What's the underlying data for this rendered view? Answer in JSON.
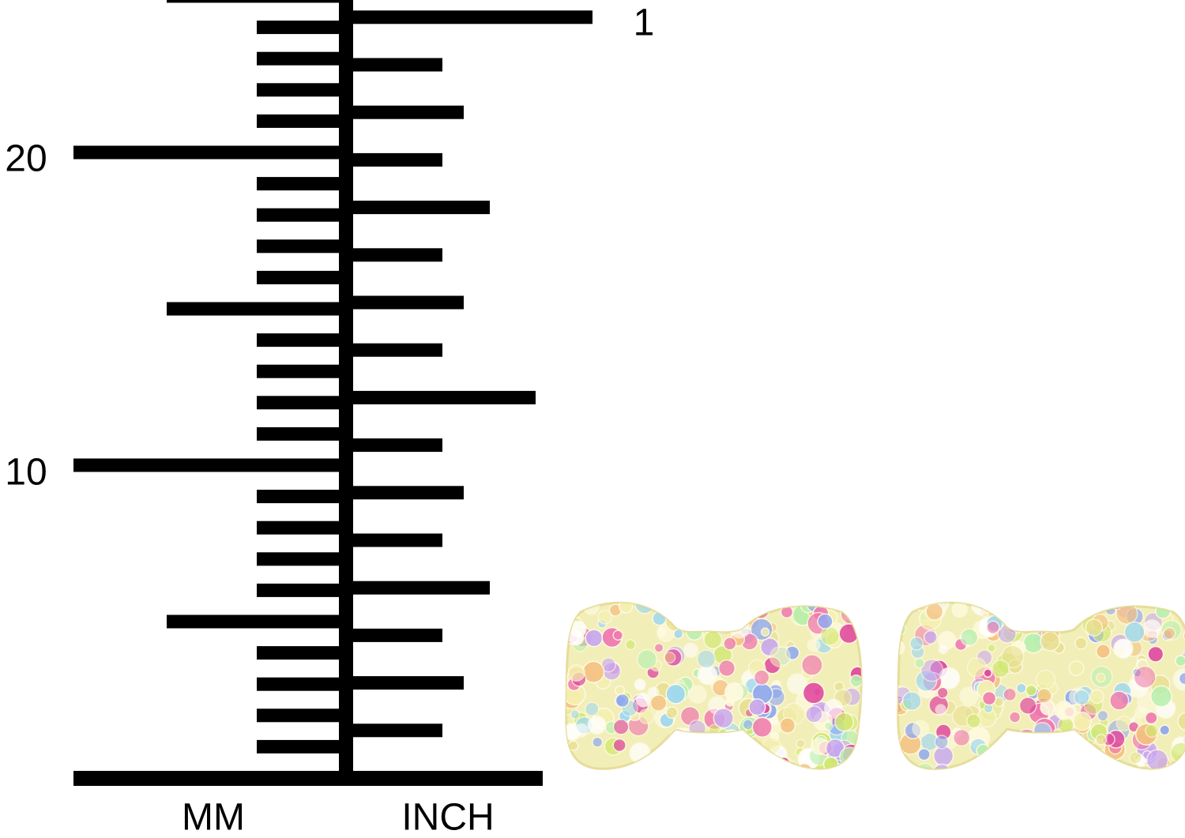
{
  "ruler": {
    "mm_labels": [
      "20",
      "10"
    ],
    "mm_unit": "MM",
    "inch_label": "1",
    "inch_unit": "INCH"
  }
}
